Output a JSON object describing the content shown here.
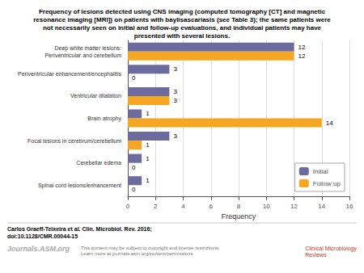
{
  "chart_data": {
    "type": "bar",
    "orientation": "horizontal",
    "title": "Frequency of lesions detected using CNS imaging (computed tomography [CT] and magnetic\nresonance imaging [MRI]) on patients with baylisascariasis (see Table 3); the same patients were\nnot necessarily seen on initial and follow-up evaluations, and individual patients may have\npresented with several lesions.",
    "categories": [
      "Deep white matter lesions:\nPeriventricular and cerebellum",
      "Periventricular enhancement/encephalitis",
      "Ventricular dilatation",
      "Brain atrophy",
      "Focal lesions in cerebrum/cerebellum",
      "Cerebellar edema",
      "Spinal cord lesions/enhancement"
    ],
    "series": [
      {
        "name": "Initial",
        "color": "#6b6b9e",
        "values": [
          12,
          3,
          3,
          1,
          3,
          1,
          1
        ]
      },
      {
        "name": "Follow up",
        "color": "#f5a623",
        "values": [
          12,
          0,
          3,
          14,
          1,
          0,
          0
        ]
      }
    ],
    "xlabel": "Frequency",
    "xlim": [
      0,
      16
    ],
    "xticks": [
      0,
      2,
      4,
      6,
      8,
      10,
      12,
      14,
      16
    ],
    "grid": true,
    "legend": "lower right",
    "data_labels": true,
    "annotations": [
      "Carlos Graeff-Teixeira et al. Clin. Microbiol. Rev. 2016;\ndoi:10.1128/CMR.00044-15",
      "Journals.ASM.org",
      "This content may be subject to copyright and license restrictions.\nLearn more at journals.asm.org/content/permissions",
      "Clinical Microbiology\nReviews"
    ]
  }
}
